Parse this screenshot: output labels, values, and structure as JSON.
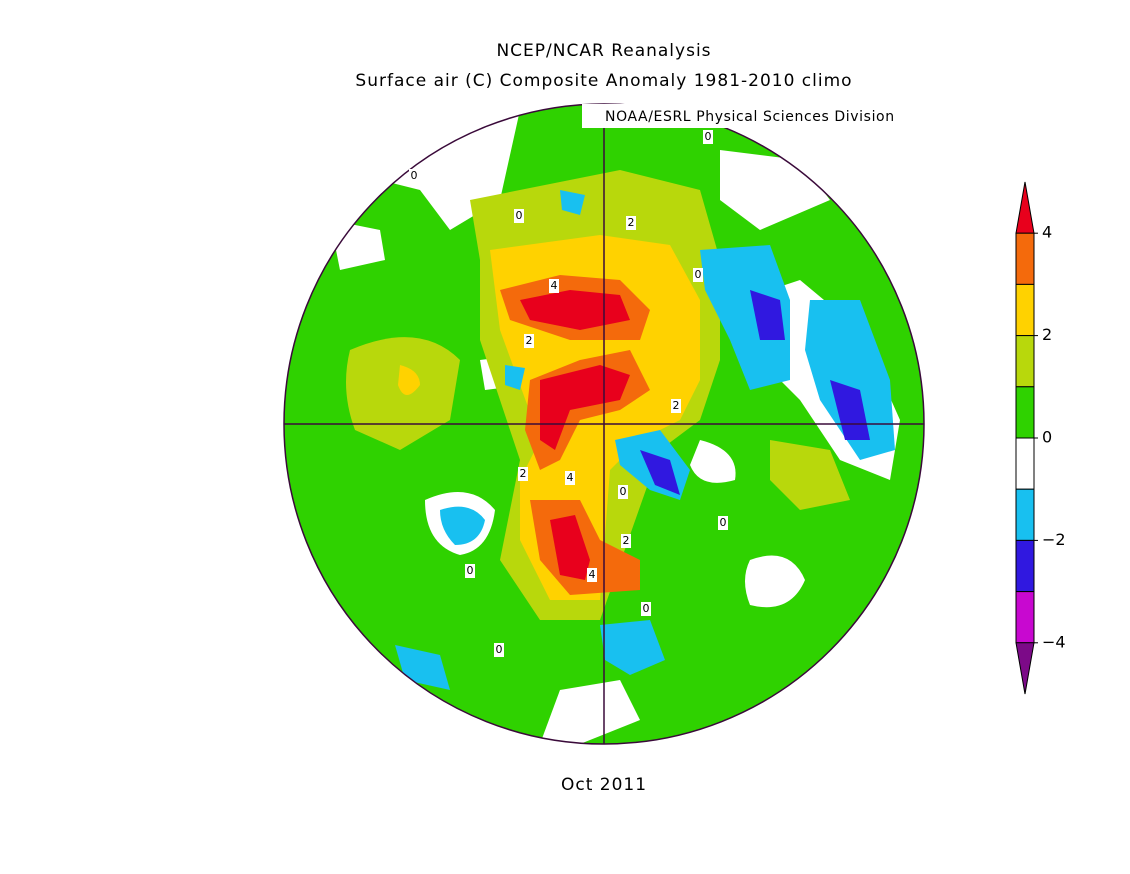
{
  "header": {
    "title": "NCEP/NCAR Reanalysis",
    "subtitle": "Surface air (C) Composite Anomaly 1981-2010 climo"
  },
  "credit": "NOAA/ESRL Physical Sciences Division",
  "colorbar": {
    "colors": [
      "#e8001c",
      "#f46a0c",
      "#ffd200",
      "#b8d80c",
      "#2fd200",
      "#ffffff",
      "#18c0f0",
      "#3018e0",
      "#c808d0",
      "#7c0a88"
    ],
    "ticks": [
      {
        "value": 4,
        "label": "4"
      },
      {
        "value": 2,
        "label": "2"
      },
      {
        "value": 0,
        "label": "0"
      },
      {
        "value": -2,
        "label": "−2"
      },
      {
        "value": -4,
        "label": "−4"
      }
    ]
  },
  "contour_labels": [
    "0",
    "0",
    "0",
    "2",
    "4",
    "2",
    "0",
    "2",
    "2",
    "4",
    "0",
    "0",
    "2",
    "4",
    "0",
    "0",
    "0"
  ],
  "footer": {
    "date": "Oct 2011"
  }
}
